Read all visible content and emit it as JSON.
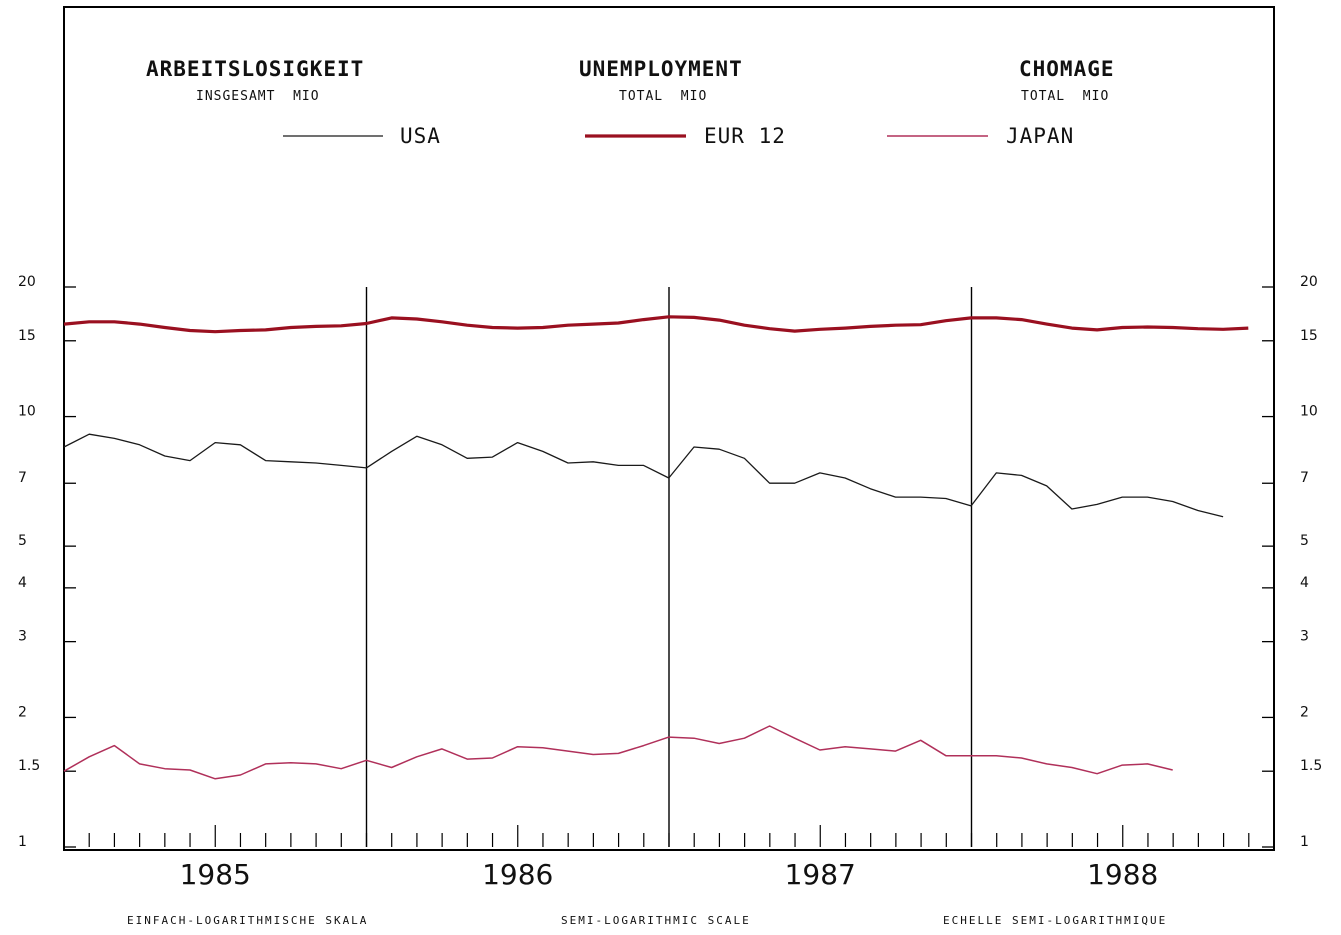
{
  "header": {
    "titles": [
      "ARBEITSLOSIGKEIT",
      "UNEMPLOYMENT",
      "CHOMAGE"
    ],
    "subtitles": [
      "INSGESAMT  MIO",
      "TOTAL  MIO",
      "TOTAL  MIO"
    ]
  },
  "footer": [
    "EINFACH-LOGARITHMISCHE SKALA",
    "SEMI-LOGARITHMIC SCALE",
    "ECHELLE SEMI-LOGARITHMIQUE"
  ],
  "colors": {
    "usa": "#1a1a1a",
    "eur12": "#9a1020",
    "japan": "#b0305a",
    "frame": "#000000"
  },
  "chart_data": {
    "type": "line",
    "y_scale": "log",
    "ylim": [
      1,
      20
    ],
    "y_ticks": [
      1,
      1.5,
      2,
      3,
      4,
      5,
      7,
      10,
      15,
      20
    ],
    "y_tick_labels": [
      "1",
      "1.5",
      "2",
      "3",
      "4",
      "5",
      "7",
      "10",
      "15",
      "20"
    ],
    "xlim": [
      1984.5,
      1988.5
    ],
    "x_tick_labels": [
      {
        "x": 1985,
        "label": "1985"
      },
      {
        "x": 1986,
        "label": "1986"
      },
      {
        "x": 1987,
        "label": "1987"
      },
      {
        "x": 1988,
        "label": "1988"
      }
    ],
    "vertical_rules": [
      1985.5,
      1986.5,
      1987.5
    ],
    "series": [
      {
        "name": "USA",
        "start": 1984.5,
        "step": 0.0833,
        "values": [
          8.5,
          9.1,
          8.9,
          8.6,
          8.1,
          7.9,
          8.7,
          8.6,
          7.9,
          7.85,
          7.8,
          7.7,
          7.6,
          8.3,
          9.0,
          8.6,
          8.0,
          8.05,
          8.7,
          8.3,
          7.8,
          7.85,
          7.7,
          7.7,
          7.2,
          8.5,
          8.4,
          8.0,
          7.0,
          7.0,
          7.4,
          7.2,
          6.8,
          6.5,
          6.5,
          6.45,
          6.2,
          7.4,
          7.3,
          6.9,
          6.1,
          6.25,
          6.5,
          6.5,
          6.35,
          6.05,
          5.85
        ]
      },
      {
        "name": "EUR 12",
        "start": 1984.5,
        "step": 0.0833,
        "values": [
          16.4,
          16.6,
          16.6,
          16.4,
          16.1,
          15.85,
          15.75,
          15.85,
          15.9,
          16.1,
          16.2,
          16.25,
          16.45,
          16.95,
          16.85,
          16.6,
          16.3,
          16.1,
          16.05,
          16.1,
          16.3,
          16.4,
          16.5,
          16.8,
          17.05,
          17.0,
          16.75,
          16.3,
          16.0,
          15.8,
          15.95,
          16.05,
          16.2,
          16.3,
          16.35,
          16.7,
          16.95,
          16.95,
          16.8,
          16.4,
          16.05,
          15.9,
          16.1,
          16.15,
          16.1,
          16.0,
          15.95,
          16.05
        ]
      },
      {
        "name": "JAPAN",
        "start": 1984.5,
        "step": 0.0833,
        "values": [
          1.5,
          1.62,
          1.72,
          1.56,
          1.52,
          1.51,
          1.44,
          1.47,
          1.56,
          1.57,
          1.56,
          1.52,
          1.59,
          1.53,
          1.62,
          1.69,
          1.6,
          1.61,
          1.71,
          1.7,
          1.67,
          1.64,
          1.65,
          1.72,
          1.8,
          1.79,
          1.74,
          1.79,
          1.91,
          1.79,
          1.68,
          1.71,
          1.69,
          1.67,
          1.77,
          1.63,
          1.63,
          1.63,
          1.61,
          1.56,
          1.53,
          1.48,
          1.55,
          1.56,
          1.51
        ]
      }
    ]
  }
}
